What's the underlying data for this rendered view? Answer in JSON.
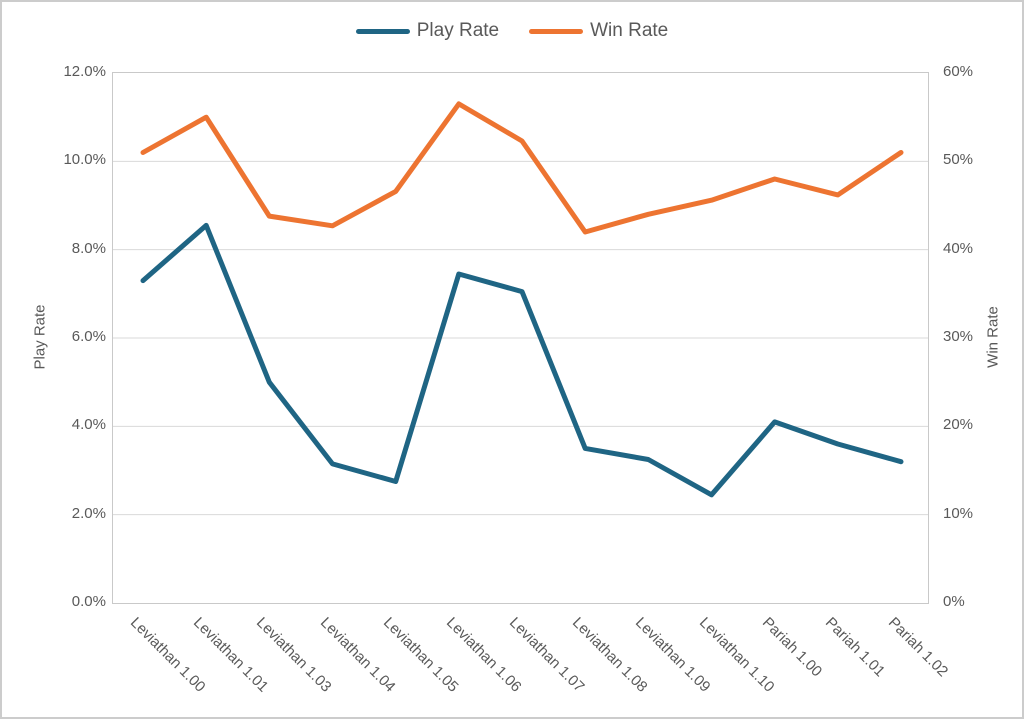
{
  "chart_data": {
    "type": "line",
    "title": "",
    "categories": [
      "Leviathan 1.00",
      "Leviathan 1.01",
      "Leviathan 1.03",
      "Leviathan 1.04",
      "Leviathan 1.05",
      "Leviathan 1.06",
      "Leviathan 1.07",
      "Leviathan 1.08",
      "Leviathan 1.09",
      "Leviathan 1.10",
      "Pariah 1.00",
      "Pariah 1.01",
      "Pariah 1.02"
    ],
    "series": [
      {
        "name": "Play Rate",
        "axis": "left",
        "color": "#1F6584",
        "values": [
          7.3,
          8.55,
          5.0,
          3.15,
          2.75,
          7.45,
          7.05,
          3.5,
          3.25,
          2.45,
          4.1,
          3.6,
          3.2
        ]
      },
      {
        "name": "Win Rate",
        "axis": "right",
        "color": "#ED7431",
        "values": [
          51,
          55,
          43.8,
          42.7,
          46.6,
          56.5,
          52.3,
          42,
          44,
          45.6,
          48,
          46.2,
          51
        ]
      }
    ],
    "left_axis": {
      "title": "Play Rate",
      "min": 0,
      "max": 12,
      "step": 2,
      "tick_labels": [
        "0.0%",
        "2.0%",
        "4.0%",
        "6.0%",
        "8.0%",
        "10.0%",
        "12.0%"
      ]
    },
    "right_axis": {
      "title": "Win Rate",
      "min": 0,
      "max": 60,
      "step": 10,
      "tick_labels": [
        "0%",
        "10%",
        "20%",
        "30%",
        "40%",
        "50%",
        "60%"
      ]
    },
    "grid": true,
    "legend_position": "top-center",
    "gridline_color": "#d9d9d9",
    "text_color": "#595959"
  }
}
